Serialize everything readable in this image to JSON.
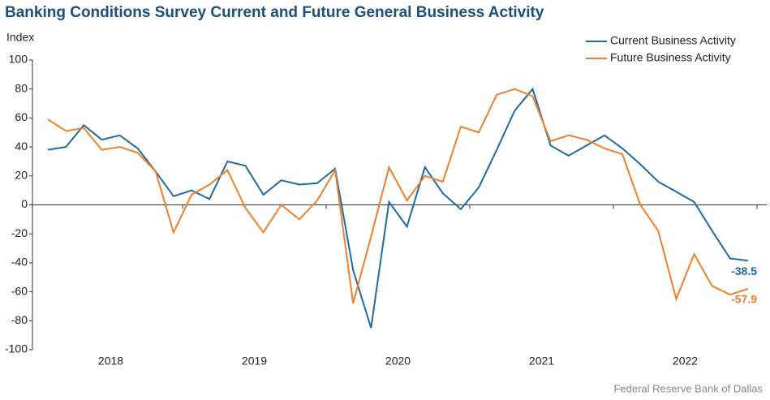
{
  "chart_data": {
    "type": "line",
    "title": "Banking Conditions Survey Current and Future General Business Activity",
    "y_label": "Index",
    "source": "Federal Reserve Bank of Dallas",
    "x": [
      2018.0625,
      2018.1875,
      2018.3125,
      2018.4375,
      2018.5625,
      2018.6875,
      2018.8125,
      2018.9375,
      2019.0625,
      2019.1875,
      2019.3125,
      2019.4375,
      2019.5625,
      2019.6875,
      2019.8125,
      2019.9375,
      2020.0625,
      2020.1875,
      2020.3125,
      2020.4375,
      2020.5625,
      2020.6875,
      2020.8125,
      2020.9375,
      2021.0625,
      2021.1875,
      2021.3125,
      2021.4375,
      2021.5625,
      2021.6875,
      2021.8125,
      2021.9375,
      2022.0625,
      2022.1875,
      2022.3125,
      2022.4375,
      2022.5625,
      2022.6875,
      2022.8125,
      2022.9375
    ],
    "series": [
      {
        "name": "Current Business Activity",
        "color": "#1f6aa5",
        "values": [
          38,
          40,
          55,
          45,
          48,
          39,
          23,
          6,
          10,
          4,
          30,
          27,
          7,
          17,
          14,
          15,
          25,
          -45,
          -85,
          2,
          -15,
          26,
          8,
          -3,
          12,
          38,
          65,
          80,
          41,
          34,
          41,
          48,
          39,
          28,
          16,
          9,
          2,
          -18,
          -37,
          -38.5
        ]
      },
      {
        "name": "Future Business Activity",
        "color": "#f07f2a",
        "values": [
          59,
          51,
          53,
          38,
          40,
          36,
          23,
          -19,
          7,
          14,
          24,
          -2,
          -19,
          0,
          -10,
          3,
          24,
          -68,
          -22,
          26,
          3,
          20,
          16,
          54,
          50,
          76,
          80,
          75,
          44,
          48,
          45,
          39,
          35,
          0,
          -18,
          -65,
          -34,
          -56,
          -62,
          -57.9
        ]
      }
    ],
    "xlim": [
      2018,
      2023
    ],
    "xticks": [
      {
        "value": 2018.5,
        "label": "2018"
      },
      {
        "value": 2019.5,
        "label": "2019"
      },
      {
        "value": 2020.5,
        "label": "2020"
      },
      {
        "value": 2021.5,
        "label": "2021"
      },
      {
        "value": 2022.5,
        "label": "2022"
      }
    ],
    "ylim": [
      -100,
      100
    ],
    "yticks": [
      -100,
      -80,
      -60,
      -40,
      -20,
      0,
      20,
      40,
      60,
      80,
      100
    ],
    "legend": "top-right",
    "end_labels": true
  }
}
